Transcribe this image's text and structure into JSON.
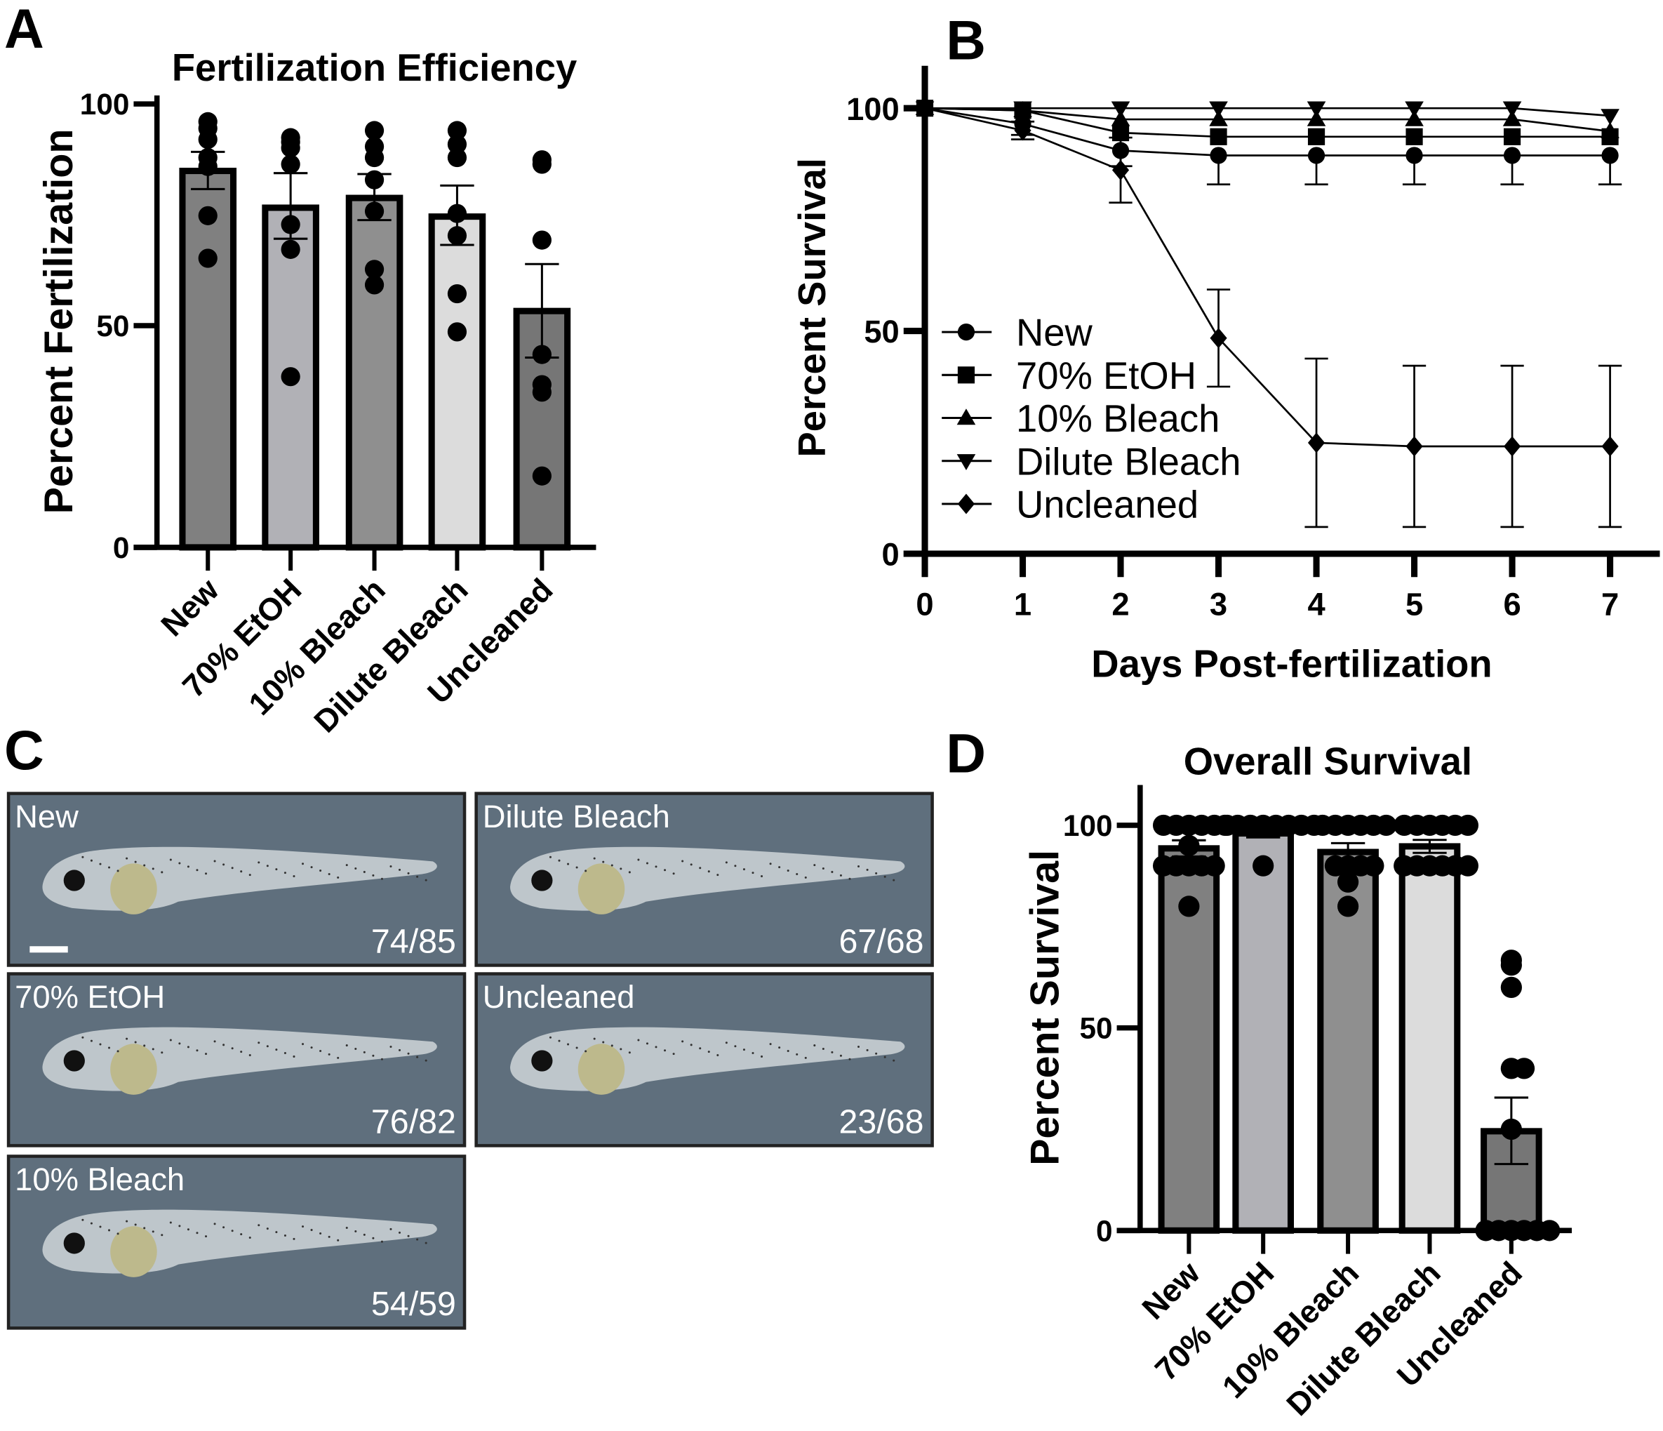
{
  "panel_letters": [
    "A",
    "B",
    "C",
    "D"
  ],
  "colors": {
    "axis": "#000000",
    "new": "#808080",
    "etoh": "#b1b1b6",
    "bleach10": "#8f8f8f",
    "dilute": "#dcdcdc",
    "uncleaned": "#767676",
    "photo_bg": "#5f6f7d",
    "photo_text": "#ffffff"
  },
  "chart_data": [
    {
      "panel": "A",
      "type": "bar",
      "title": "Fertilization Efficiency",
      "xlabel": "",
      "ylabel": "Percent Fertilization",
      "ylim": [
        0,
        100
      ],
      "yticks": [
        "0",
        "50",
        "100"
      ],
      "categories": [
        "New",
        "70% EtOH",
        "10% Bleach",
        "Dilute Bleach",
        "Uncleaned"
      ],
      "values": [
        84.9,
        76.6,
        78.8,
        74.6,
        53.3
      ],
      "error_low": [
        80.8,
        69.6,
        73.8,
        68.2,
        42.8
      ],
      "error_high": [
        89.2,
        84.4,
        84.2,
        81.6,
        63.9
      ],
      "points": [
        [
          94.5,
          96.0,
          92.0,
          87.9,
          85.9,
          74.8,
          65.2
        ],
        [
          90.1,
          91.4,
          92.4,
          86.4,
          72.8,
          67.2,
          38.5
        ],
        [
          94.0,
          90.4,
          87.9,
          82.9,
          75.8,
          59.2,
          62.7
        ],
        [
          94.0,
          90.9,
          87.9,
          75.3,
          70.3,
          57.2,
          48.6
        ],
        [
          87.4,
          86.4,
          69.3,
          43.5,
          36.7,
          35.0,
          16.1
        ]
      ]
    },
    {
      "panel": "B",
      "type": "line",
      "title": "",
      "xlabel": "Days Post-fertilization",
      "ylabel": "Percent Survival",
      "x": [
        0,
        1,
        2,
        3,
        4,
        5,
        6,
        7
      ],
      "xticks": [
        "0",
        "1",
        "2",
        "3",
        "4",
        "5",
        "6",
        "7"
      ],
      "yticks": [
        "0",
        "50",
        "100"
      ],
      "ylim": [
        0,
        100
      ],
      "legend": "center-left",
      "series": [
        {
          "name": "New",
          "marker": "circle",
          "values": [
            100,
            96.5,
            90.5,
            89.4,
            89.4,
            89.4,
            89.4,
            89.4
          ],
          "error_low": [
            100,
            94,
            87,
            82.9,
            82.9,
            82.9,
            82.9,
            82.9
          ]
        },
        {
          "name": "70% EtOH",
          "marker": "square",
          "values": [
            100,
            99.5,
            94.5,
            93.6,
            93.6,
            93.6,
            93.6,
            93.6
          ]
        },
        {
          "name": "10% Bleach",
          "marker": "triangle-up",
          "values": [
            100,
            99.5,
            97.5,
            97.5,
            97.5,
            97.5,
            97.5,
            94.8
          ]
        },
        {
          "name": "Dilute Bleach",
          "marker": "triangle-down",
          "values": [
            100,
            100,
            100,
            100,
            100,
            100,
            100,
            98.3
          ]
        },
        {
          "name": "Uncleaned",
          "marker": "diamond",
          "values": [
            100,
            95,
            86.1,
            48.4,
            24.9,
            24.1,
            24.1,
            24.1
          ],
          "error_low": [
            100,
            93,
            78.8,
            37.5,
            6.0,
            6.0,
            6.0,
            6.0
          ],
          "error_high": [
            100,
            97,
            93.4,
            59.3,
            43.8,
            42.2,
            42.2,
            42.2
          ]
        }
      ]
    },
    {
      "panel": "D",
      "type": "bar",
      "title": "Overall Survival",
      "xlabel": "",
      "ylabel": "Percent Survival",
      "ylim": [
        0,
        100
      ],
      "yticks": [
        "0",
        "50",
        "100"
      ],
      "categories": [
        "New",
        "70% EtOH",
        "10% Bleach",
        "Dilute Bleach",
        "Uncleaned"
      ],
      "values": [
        94.3,
        98.0,
        93.4,
        94.8,
        24.5
      ],
      "error_low": [
        92.3,
        97.0,
        91.2,
        93.2,
        16.4
      ],
      "error_high": [
        96.3,
        99.0,
        95.6,
        96.4,
        32.8
      ],
      "points": [
        [
          100,
          100,
          100,
          100,
          100,
          100,
          95,
          90,
          90,
          90,
          90,
          90,
          80
        ],
        [
          100,
          100,
          100,
          100,
          100,
          100,
          100,
          100,
          90
        ],
        [
          100,
          100,
          100,
          100,
          100,
          100,
          90,
          90,
          90,
          90,
          86,
          80
        ],
        [
          100,
          100,
          100,
          100,
          100,
          100,
          90,
          90,
          90,
          90,
          90,
          90
        ],
        [
          66.7,
          65.5,
          60,
          40,
          40,
          25,
          0,
          0,
          0,
          0,
          0,
          0
        ]
      ]
    }
  ],
  "panel_c": {
    "images": [
      {
        "label": "New",
        "count": "74/85",
        "scale_bar": true
      },
      {
        "label": "Dilute Bleach",
        "count": "67/68"
      },
      {
        "label": "70% EtOH",
        "count": "76/82"
      },
      {
        "label": "Uncleaned",
        "count": "23/68"
      },
      {
        "label": "10% Bleach",
        "count": "54/59"
      }
    ]
  }
}
